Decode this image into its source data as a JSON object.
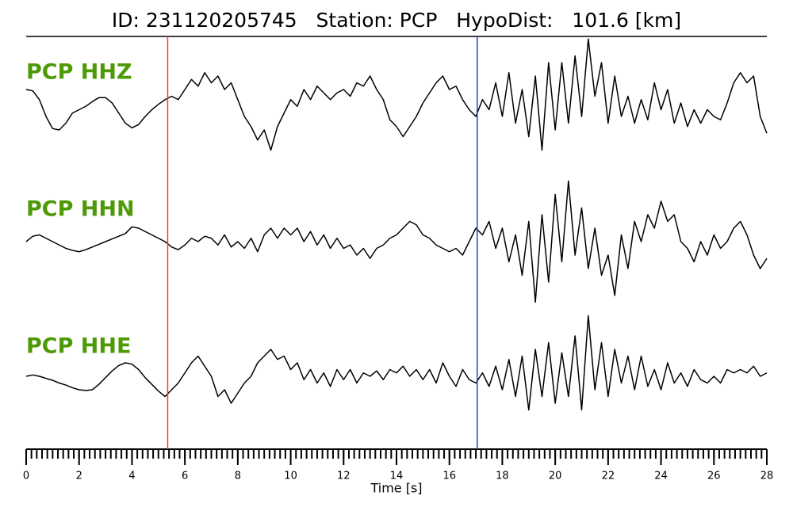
{
  "chart_data": {
    "type": "line",
    "title": "ID: 231120205745   Station: PCP   HypoDist:   101.6 [km]",
    "xlabel": "Time [s]",
    "xlim": [
      0,
      28
    ],
    "xticks": [
      0,
      2,
      4,
      6,
      8,
      10,
      12,
      14,
      16,
      18,
      20,
      22,
      24,
      26,
      28
    ],
    "minor_tick_step": 0.2,
    "ylim": [
      -1,
      1
    ],
    "label_color": "#4e9a06",
    "vlines": [
      {
        "value": 5.35,
        "color": "#e8413c"
      },
      {
        "value": 17.05,
        "color": "#1f3fd8"
      }
    ],
    "x": [
      0,
      0.25,
      0.5,
      0.75,
      1,
      1.25,
      1.5,
      1.75,
      2,
      2.25,
      2.5,
      2.75,
      3,
      3.25,
      3.5,
      3.75,
      4,
      4.25,
      4.5,
      4.75,
      5,
      5.25,
      5.5,
      5.75,
      6,
      6.25,
      6.5,
      6.75,
      7,
      7.25,
      7.5,
      7.75,
      8,
      8.25,
      8.5,
      8.75,
      9,
      9.25,
      9.5,
      9.75,
      10,
      10.25,
      10.5,
      10.75,
      11,
      11.25,
      11.5,
      11.75,
      12,
      12.25,
      12.5,
      12.75,
      13,
      13.25,
      13.5,
      13.75,
      14,
      14.25,
      14.5,
      14.75,
      15,
      15.25,
      15.5,
      15.75,
      16,
      16.25,
      16.5,
      16.75,
      17,
      17.25,
      17.5,
      17.75,
      18,
      18.25,
      18.5,
      18.75,
      19,
      19.25,
      19.5,
      19.75,
      20,
      20.25,
      20.5,
      20.75,
      21,
      21.25,
      21.5,
      21.75,
      22,
      22.25,
      22.5,
      22.75,
      23,
      23.25,
      23.5,
      23.75,
      24,
      24.25,
      24.5,
      24.75,
      25,
      25.25,
      25.5,
      25.75,
      26,
      26.25,
      26.5,
      26.75,
      27,
      27.25,
      27.5,
      27.75,
      28
    ],
    "series": [
      {
        "name": "PCP HHZ",
        "color": "#000000",
        "values": [
          0.2,
          0.18,
          0.05,
          -0.2,
          -0.38,
          -0.4,
          -0.3,
          -0.15,
          -0.1,
          -0.05,
          0.02,
          0.08,
          0.08,
          0.0,
          -0.15,
          -0.3,
          -0.37,
          -0.32,
          -0.2,
          -0.1,
          -0.02,
          0.05,
          0.1,
          0.05,
          0.2,
          0.35,
          0.25,
          0.45,
          0.3,
          0.4,
          0.2,
          0.3,
          0.05,
          -0.2,
          -0.35,
          -0.55,
          -0.4,
          -0.7,
          -0.35,
          -0.15,
          0.05,
          -0.05,
          0.2,
          0.05,
          0.25,
          0.15,
          0.05,
          0.15,
          0.2,
          0.1,
          0.3,
          0.25,
          0.4,
          0.2,
          0.05,
          -0.25,
          -0.35,
          -0.5,
          -0.35,
          -0.2,
          0.0,
          0.15,
          0.3,
          0.4,
          0.2,
          0.25,
          0.05,
          -0.1,
          -0.2,
          0.05,
          -0.1,
          0.3,
          -0.2,
          0.45,
          -0.3,
          0.2,
          -0.5,
          0.4,
          -0.7,
          0.6,
          -0.4,
          0.6,
          -0.3,
          0.7,
          -0.2,
          0.95,
          0.1,
          0.6,
          -0.3,
          0.4,
          -0.2,
          0.1,
          -0.3,
          0.05,
          -0.25,
          0.3,
          -0.1,
          0.2,
          -0.3,
          0.0,
          -0.35,
          -0.1,
          -0.3,
          -0.1,
          -0.2,
          -0.25,
          0.0,
          0.3,
          0.45,
          0.3,
          0.4,
          -0.2,
          -0.45
        ]
      },
      {
        "name": "PCP HHN",
        "color": "#000000",
        "values": [
          0.0,
          0.08,
          0.1,
          0.05,
          0.0,
          -0.05,
          -0.1,
          -0.13,
          -0.15,
          -0.12,
          -0.08,
          -0.04,
          0.0,
          0.04,
          0.08,
          0.12,
          0.22,
          0.2,
          0.15,
          0.1,
          0.05,
          0.0,
          -0.08,
          -0.12,
          -0.05,
          0.05,
          0.0,
          0.08,
          0.05,
          -0.05,
          0.1,
          -0.08,
          0.0,
          -0.1,
          0.05,
          -0.15,
          0.1,
          0.2,
          0.05,
          0.2,
          0.1,
          0.2,
          0.0,
          0.15,
          -0.05,
          0.1,
          -0.1,
          0.05,
          -0.1,
          -0.05,
          -0.2,
          -0.1,
          -0.25,
          -0.1,
          -0.05,
          0.05,
          0.1,
          0.2,
          0.3,
          0.25,
          0.1,
          0.05,
          -0.05,
          -0.1,
          -0.15,
          -0.1,
          -0.2,
          0.0,
          0.2,
          0.1,
          0.3,
          -0.1,
          0.2,
          -0.3,
          0.1,
          -0.5,
          0.3,
          -0.9,
          0.4,
          -0.6,
          0.7,
          -0.3,
          0.9,
          -0.2,
          0.5,
          -0.4,
          0.2,
          -0.5,
          -0.2,
          -0.8,
          0.1,
          -0.4,
          0.3,
          0.0,
          0.4,
          0.2,
          0.6,
          0.3,
          0.4,
          0.0,
          -0.1,
          -0.3,
          0.0,
          -0.2,
          0.1,
          -0.1,
          0.0,
          0.2,
          0.3,
          0.1,
          -0.2,
          -0.4,
          -0.25
        ]
      },
      {
        "name": "PCP HHE",
        "color": "#000000",
        "values": [
          0.0,
          0.02,
          0.0,
          -0.03,
          -0.06,
          -0.1,
          -0.13,
          -0.17,
          -0.2,
          -0.21,
          -0.2,
          -0.12,
          -0.02,
          0.08,
          0.16,
          0.2,
          0.18,
          0.1,
          -0.02,
          -0.12,
          -0.22,
          -0.3,
          -0.2,
          -0.1,
          0.05,
          0.2,
          0.3,
          0.15,
          0.0,
          -0.3,
          -0.2,
          -0.4,
          -0.25,
          -0.1,
          0.0,
          0.2,
          0.3,
          0.4,
          0.25,
          0.3,
          0.1,
          0.2,
          -0.05,
          0.1,
          -0.1,
          0.05,
          -0.15,
          0.1,
          -0.05,
          0.1,
          -0.1,
          0.05,
          0.0,
          0.08,
          -0.05,
          0.1,
          0.05,
          0.15,
          0.0,
          0.1,
          -0.05,
          0.1,
          -0.1,
          0.2,
          0.0,
          -0.15,
          0.1,
          -0.05,
          -0.1,
          0.05,
          -0.15,
          0.15,
          -0.2,
          0.25,
          -0.3,
          0.3,
          -0.5,
          0.4,
          -0.3,
          0.5,
          -0.4,
          0.35,
          -0.3,
          0.6,
          -0.5,
          0.9,
          -0.2,
          0.5,
          -0.3,
          0.4,
          -0.1,
          0.3,
          -0.2,
          0.3,
          -0.15,
          0.1,
          -0.2,
          0.2,
          -0.1,
          0.05,
          -0.15,
          0.1,
          -0.05,
          -0.1,
          0.0,
          -0.1,
          0.1,
          0.05,
          0.1,
          0.05,
          0.15,
          0.0,
          0.05
        ]
      }
    ]
  }
}
